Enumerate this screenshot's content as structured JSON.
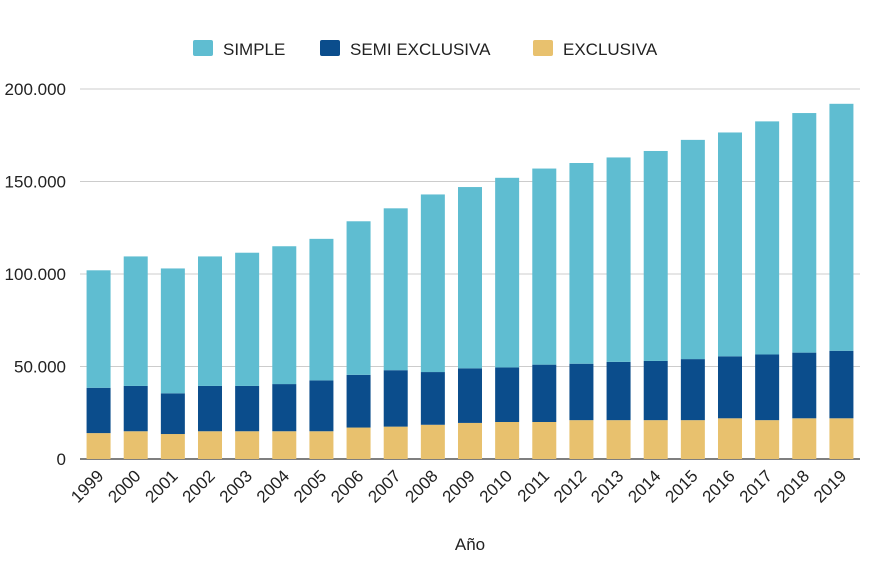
{
  "chart_data": {
    "type": "bar",
    "stacked": true,
    "xlabel": "Año",
    "ylabel": "",
    "ylim": [
      0,
      200000
    ],
    "y_ticks": [
      0,
      50000,
      100000,
      150000,
      200000
    ],
    "y_tick_labels": [
      "0",
      "50.000",
      "100.000",
      "150.000",
      "200.000"
    ],
    "grid": true,
    "legend_position": "top",
    "categories": [
      "1999",
      "2000",
      "2001",
      "2002",
      "2003",
      "2004",
      "2005",
      "2006",
      "2007",
      "2008",
      "2009",
      "2010",
      "2011",
      "2012",
      "2013",
      "2014",
      "2015",
      "2016",
      "2017",
      "2018",
      "2019"
    ],
    "series": [
      {
        "name": "EXCLUSIVA",
        "color": "#e8c16e",
        "values": [
          14000,
          15000,
          13500,
          15000,
          15000,
          15000,
          15000,
          17000,
          17500,
          18500,
          19500,
          20000,
          20000,
          21000,
          21000,
          21000,
          21000,
          22000,
          21000,
          22000,
          22000
        ]
      },
      {
        "name": "SEMI EXCLUSIVA",
        "color": "#0b4d8c",
        "values": [
          24500,
          24500,
          22000,
          24500,
          24500,
          25500,
          27500,
          28500,
          30500,
          28500,
          29500,
          29500,
          31000,
          30500,
          31500,
          32000,
          33000,
          33500,
          35500,
          35500,
          36500
        ]
      },
      {
        "name": "SIMPLE",
        "color": "#5fbdd1",
        "values": [
          63500,
          70000,
          67500,
          70000,
          72000,
          74500,
          76500,
          83000,
          87500,
          96000,
          98000,
          102500,
          106000,
          108500,
          110500,
          113500,
          118500,
          121000,
          126000,
          129500,
          133500
        ]
      }
    ],
    "legend_order": [
      "SIMPLE",
      "SEMI EXCLUSIVA",
      "EXCLUSIVA"
    ]
  }
}
